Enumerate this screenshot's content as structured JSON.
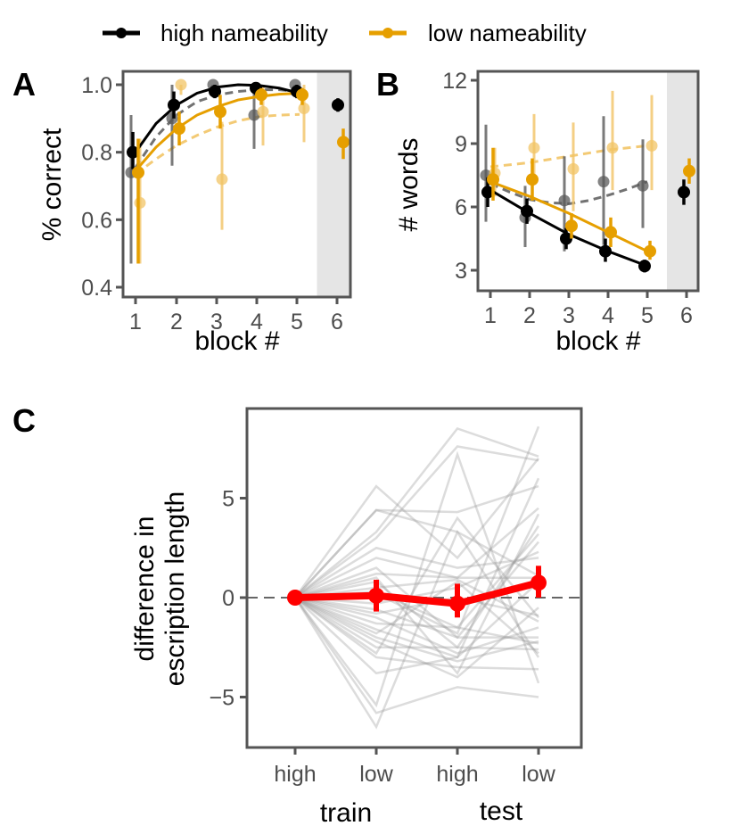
{
  "legend": {
    "items": [
      {
        "label": "high nameability",
        "color": "#000000"
      },
      {
        "label": "low nameability",
        "color": "#E69F00"
      }
    ]
  },
  "colors": {
    "high": "#000000",
    "low": "#E69F00",
    "high_light": "#595959",
    "low_light": "#F2C466",
    "test_shade": "#E5E5E5",
    "frame": "#555555",
    "mean_line": "#FF0000",
    "participant_line": "#9a9a9a"
  },
  "chart_data": [
    {
      "panel": "A",
      "type": "line",
      "title": "",
      "xlabel": "block #",
      "ylabel": "% correct",
      "x": [
        1,
        2,
        3,
        4,
        5,
        6
      ],
      "xticks": [
        "1",
        "2",
        "3",
        "4",
        "5",
        "6"
      ],
      "yticks": [
        "0.4",
        "0.6",
        "0.8",
        "1.0"
      ],
      "ylim": [
        0.38,
        1.04
      ],
      "test_block_shaded": 6,
      "series": [
        {
          "name": "high nameability",
          "kind": "points",
          "x": [
            1,
            2,
            3,
            4,
            5,
            6
          ],
          "values": [
            0.8,
            0.94,
            0.98,
            0.99,
            0.98,
            0.94
          ],
          "err_low": [
            0.75,
            0.9,
            0.96,
            0.97,
            0.96,
            0.92
          ],
          "err_high": [
            0.86,
            0.98,
            1.0,
            1.0,
            1.0,
            0.96
          ]
        },
        {
          "name": "low nameability",
          "kind": "points",
          "x": [
            1,
            2,
            3,
            4,
            5,
            6
          ],
          "values": [
            0.74,
            0.87,
            0.92,
            0.97,
            0.97,
            0.83
          ],
          "err_low": [
            0.47,
            0.82,
            0.87,
            0.94,
            0.94,
            0.78
          ],
          "err_high": [
            0.84,
            0.92,
            0.97,
            0.99,
            0.99,
            0.87
          ]
        },
        {
          "name": "high nameability (model)",
          "kind": "dim-points",
          "x": [
            1,
            2,
            3,
            4,
            5
          ],
          "values": [
            0.74,
            0.9,
            1.0,
            0.91,
            1.0
          ],
          "err_low": [
            0.47,
            0.76,
            0.97,
            0.81,
            0.97
          ],
          "err_high": [
            0.91,
            1.0,
            1.0,
            1.0,
            1.0
          ]
        },
        {
          "name": "low nameability (model)",
          "kind": "dim-points",
          "x": [
            1,
            2,
            3,
            4,
            5
          ],
          "values": [
            0.65,
            1.0,
            0.72,
            0.92,
            0.93
          ],
          "err_low": [
            0.47,
            0.97,
            0.57,
            0.82,
            0.83
          ],
          "err_high": [
            0.84,
            1.0,
            0.89,
            1.0,
            1.0
          ]
        },
        {
          "name": "high fit",
          "kind": "curve",
          "x": [
            1,
            1.5,
            2,
            2.5,
            3,
            3.5,
            4,
            4.5,
            5
          ],
          "values": [
            0.8,
            0.885,
            0.94,
            0.975,
            0.993,
            1.0,
            0.998,
            0.99,
            0.975
          ]
        },
        {
          "name": "low fit",
          "kind": "curve",
          "x": [
            1,
            1.5,
            2,
            2.5,
            3,
            3.5,
            4,
            4.5,
            5
          ],
          "values": [
            0.745,
            0.815,
            0.87,
            0.91,
            0.935,
            0.955,
            0.965,
            0.972,
            0.975
          ]
        },
        {
          "name": "high model fit",
          "kind": "dashed",
          "x": [
            1,
            1.5,
            2,
            2.5,
            3,
            3.5,
            4,
            4.5,
            5
          ],
          "values": [
            0.755,
            0.845,
            0.91,
            0.95,
            0.97,
            0.98,
            0.985,
            0.985,
            0.98
          ]
        },
        {
          "name": "low model fit",
          "kind": "dashed",
          "x": [
            1,
            1.5,
            2,
            2.5,
            3,
            3.5,
            4,
            4.5,
            5
          ],
          "values": [
            0.735,
            0.78,
            0.82,
            0.85,
            0.875,
            0.893,
            0.905,
            0.91,
            0.912
          ]
        }
      ]
    },
    {
      "panel": "B",
      "type": "line",
      "title": "",
      "xlabel": "block #",
      "ylabel": "# words",
      "x": [
        1,
        2,
        3,
        4,
        5,
        6
      ],
      "xticks": [
        "1",
        "2",
        "3",
        "4",
        "5",
        "6"
      ],
      "yticks": [
        "3",
        "6",
        "9",
        "12"
      ],
      "ylim": [
        0.5,
        12.3
      ],
      "test_block_shaded": 6,
      "series": [
        {
          "name": "high nameability",
          "kind": "points",
          "x": [
            1,
            2,
            3,
            4,
            5,
            6
          ],
          "values": [
            6.7,
            5.8,
            4.5,
            3.9,
            3.2,
            6.7
          ],
          "err_low": [
            6.0,
            5.2,
            4.0,
            3.4,
            2.9,
            6.1
          ],
          "err_high": [
            7.4,
            6.4,
            5.0,
            4.5,
            3.5,
            7.3
          ]
        },
        {
          "name": "low nameability",
          "kind": "points",
          "x": [
            1,
            2,
            3,
            4,
            5,
            6
          ],
          "values": [
            7.3,
            7.3,
            5.1,
            4.8,
            3.9,
            7.7
          ],
          "err_low": [
            6.3,
            6.3,
            4.5,
            4.1,
            3.5,
            7.1
          ],
          "err_high": [
            8.8,
            8.3,
            5.7,
            5.5,
            4.4,
            8.3
          ]
        },
        {
          "name": "high nameability (model)",
          "kind": "dim-points",
          "x": [
            1,
            2,
            3,
            4,
            5
          ],
          "values": [
            7.5,
            5.5,
            6.3,
            7.2,
            7.0
          ],
          "err_low": [
            5.3,
            4.1,
            3.9,
            4.2,
            5.0
          ],
          "err_high": [
            9.9,
            7.0,
            8.4,
            10.3,
            9.2
          ]
        },
        {
          "name": "low nameability (model)",
          "kind": "dim-points",
          "x": [
            1,
            2,
            3,
            4,
            5
          ],
          "values": [
            7.6,
            8.8,
            7.8,
            8.8,
            8.9
          ],
          "err_low": [
            6.5,
            7.3,
            5.8,
            6.8,
            6.8
          ],
          "err_high": [
            8.8,
            10.4,
            10.0,
            11.5,
            11.3
          ]
        },
        {
          "name": "high fit",
          "kind": "curve",
          "x": [
            1,
            2,
            3,
            4,
            5
          ],
          "values": [
            6.8,
            5.7,
            4.7,
            3.9,
            3.2
          ]
        },
        {
          "name": "low fit",
          "kind": "curve",
          "x": [
            1,
            2,
            3,
            4,
            5
          ],
          "values": [
            7.2,
            6.5,
            5.7,
            4.8,
            3.9
          ]
        },
        {
          "name": "high model fit",
          "kind": "dashed",
          "x": [
            1,
            1.5,
            2,
            2.5,
            3,
            3.5,
            4,
            4.5,
            5
          ],
          "values": [
            7.1,
            6.7,
            6.35,
            6.2,
            6.15,
            6.3,
            6.55,
            6.85,
            7.2
          ]
        },
        {
          "name": "low model fit",
          "kind": "dashed",
          "x": [
            1,
            2,
            3,
            4,
            5
          ],
          "values": [
            7.9,
            8.1,
            8.4,
            8.7,
            8.9
          ]
        }
      ]
    },
    {
      "panel": "C",
      "type": "line",
      "title": "",
      "xlabel_groups": [
        "train",
        "test"
      ],
      "ylabel": "difference in\nescription length",
      "ylabel_lines": [
        "difference in",
        "escription length"
      ],
      "categories": [
        "high",
        "low",
        "high",
        "low"
      ],
      "yticks": [
        "−5",
        "0",
        "5"
      ],
      "ylim": [
        -7.4,
        9.6
      ],
      "reference_line": 0,
      "series": [
        {
          "name": "mean",
          "kind": "mean",
          "values": [
            0.0,
            0.1,
            -0.3,
            0.75
          ],
          "err_low": [
            0.0,
            -0.7,
            -1.0,
            0.0
          ],
          "err_high": [
            0.0,
            0.9,
            0.7,
            1.6
          ]
        }
      ],
      "participants": [
        [
          0,
          5.6,
          2.0,
          7.0
        ],
        [
          0,
          4.4,
          4.3,
          5.6
        ],
        [
          0,
          4.4,
          3.3,
          1.1
        ],
        [
          0,
          3.3,
          8.5,
          7.1
        ],
        [
          0,
          3.0,
          7.6,
          6.9
        ],
        [
          0,
          2.0,
          1.0,
          4.5
        ],
        [
          0,
          1.5,
          -2.0,
          2.8
        ],
        [
          0,
          1.2,
          1.0,
          1.0
        ],
        [
          0,
          0.8,
          -2.5,
          3.6
        ],
        [
          0,
          0.5,
          0.9,
          -1.2
        ],
        [
          0,
          0.3,
          -1.5,
          3.2
        ],
        [
          0,
          -0.3,
          0.5,
          2.3
        ],
        [
          0,
          -0.6,
          -2.0,
          -2.0
        ],
        [
          0,
          -1.0,
          -2.8,
          -1.5
        ],
        [
          0,
          -1.3,
          -1.5,
          -2.3
        ],
        [
          0,
          -1.6,
          -3.0,
          6.0
        ],
        [
          0,
          -2.0,
          -3.2,
          -2.2
        ],
        [
          0,
          -2.5,
          -2.5,
          -2.6
        ],
        [
          0,
          -2.8,
          4.0,
          -1.0
        ],
        [
          0,
          -3.0,
          -3.5,
          -3.6
        ],
        [
          0,
          -3.8,
          -3.0,
          0.8
        ],
        [
          0,
          -5.4,
          7.2,
          -4.3
        ],
        [
          0,
          -5.8,
          -4.5,
          -5.0
        ],
        [
          0,
          -6.5,
          3.3,
          -3.0
        ],
        [
          0,
          2.5,
          1.5,
          2.0
        ],
        [
          0,
          -0.8,
          0.0,
          -0.9
        ],
        [
          0,
          1.0,
          -3.8,
          4.2
        ],
        [
          0,
          -2.2,
          -4.0,
          -0.5
        ],
        [
          0,
          0.2,
          -1.8,
          8.6
        ],
        [
          0,
          -1.8,
          0.8,
          -2.8
        ]
      ]
    }
  ]
}
